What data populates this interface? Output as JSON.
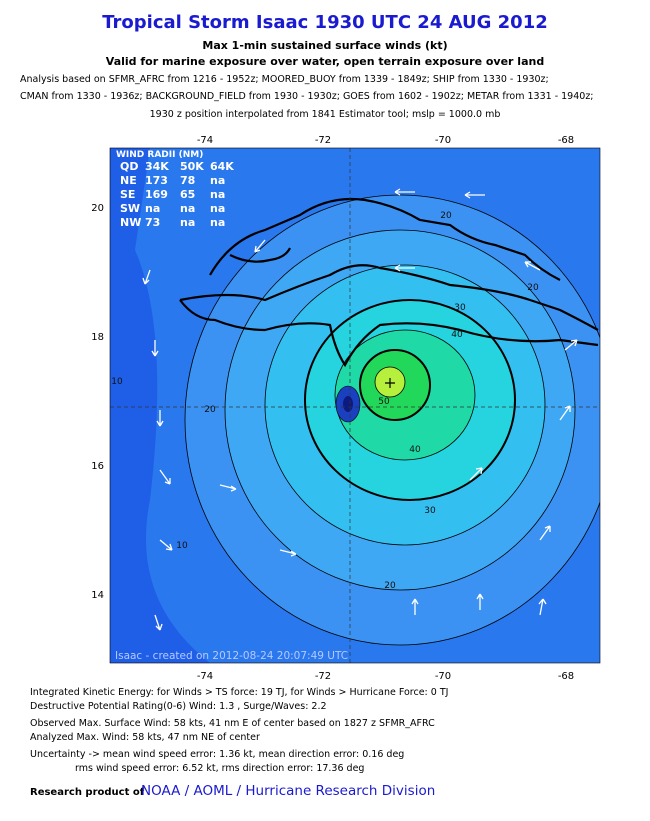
{
  "header": {
    "title": "Tropical Storm Isaac 1930 UTC 24 AUG 2012",
    "subtitle": "Max 1-min sustained surface winds (kt)",
    "subtitle2": "Valid for marine exposure over water, open terrain exposure over land",
    "analysis": [
      "Analysis based on SFMR_AFRC from 1216 - 1952z; MOORED_BUOY from 1339 - 1849z; SHIP from 1330 - 1930z;",
      "CMAN from 1330 - 1936z; BACKGROUND_FIELD from 1930 - 1930z; GOES from 1602 - 1902z; METAR from 1331 - 1940z;",
      "1930 z position interpolated from 1841 Estimator tool; mslp = 1000.0 mb"
    ]
  },
  "map": {
    "lon_labels": [
      "-74",
      "-72",
      "-70",
      "-68"
    ],
    "lat_labels": [
      "20",
      "18",
      "16",
      "14"
    ],
    "radii": {
      "title": "WIND RADII (NM)",
      "rows": [
        [
          "QD",
          "34K",
          "50K",
          "64K"
        ],
        [
          "NE",
          "173",
          "78",
          "na"
        ],
        [
          "SE",
          "169",
          "65",
          "na"
        ],
        [
          "SW",
          "na",
          "na",
          "na"
        ],
        [
          "NW",
          "73",
          "na",
          "na"
        ]
      ]
    },
    "contour_labels": [
      "20",
      "20",
      "30",
      "40",
      "40",
      "30",
      "20",
      "10",
      "20",
      "10",
      "50"
    ],
    "credit": "Isaac  -  created on 2012-08-24 20:07:49 UTC"
  },
  "footer": {
    "lines": [
      "Integrated Kinetic Energy: for Winds > TS force: 19 TJ, for Winds > Hurricane Force: 0 TJ",
      "Destructive Potential Rating(0-6)   Wind: 1.3 , Surge/Waves: 2.2",
      "Observed Max. Surface Wind: 58 kts, 41 nm E of center based on 1827 z SFMR_AFRC",
      "Analyzed Max. Wind: 58 kts, 47 nm  NE of center",
      "Uncertainty -> mean wind speed error: 1.36 kt, mean direction error: 0.16 deg",
      "rms wind speed error: 6.52 kt, rms direction error: 17.36 deg"
    ],
    "credit_prefix": "Research product of",
    "credit_org": "NOAA / AOML / Hurricane Research Division"
  }
}
